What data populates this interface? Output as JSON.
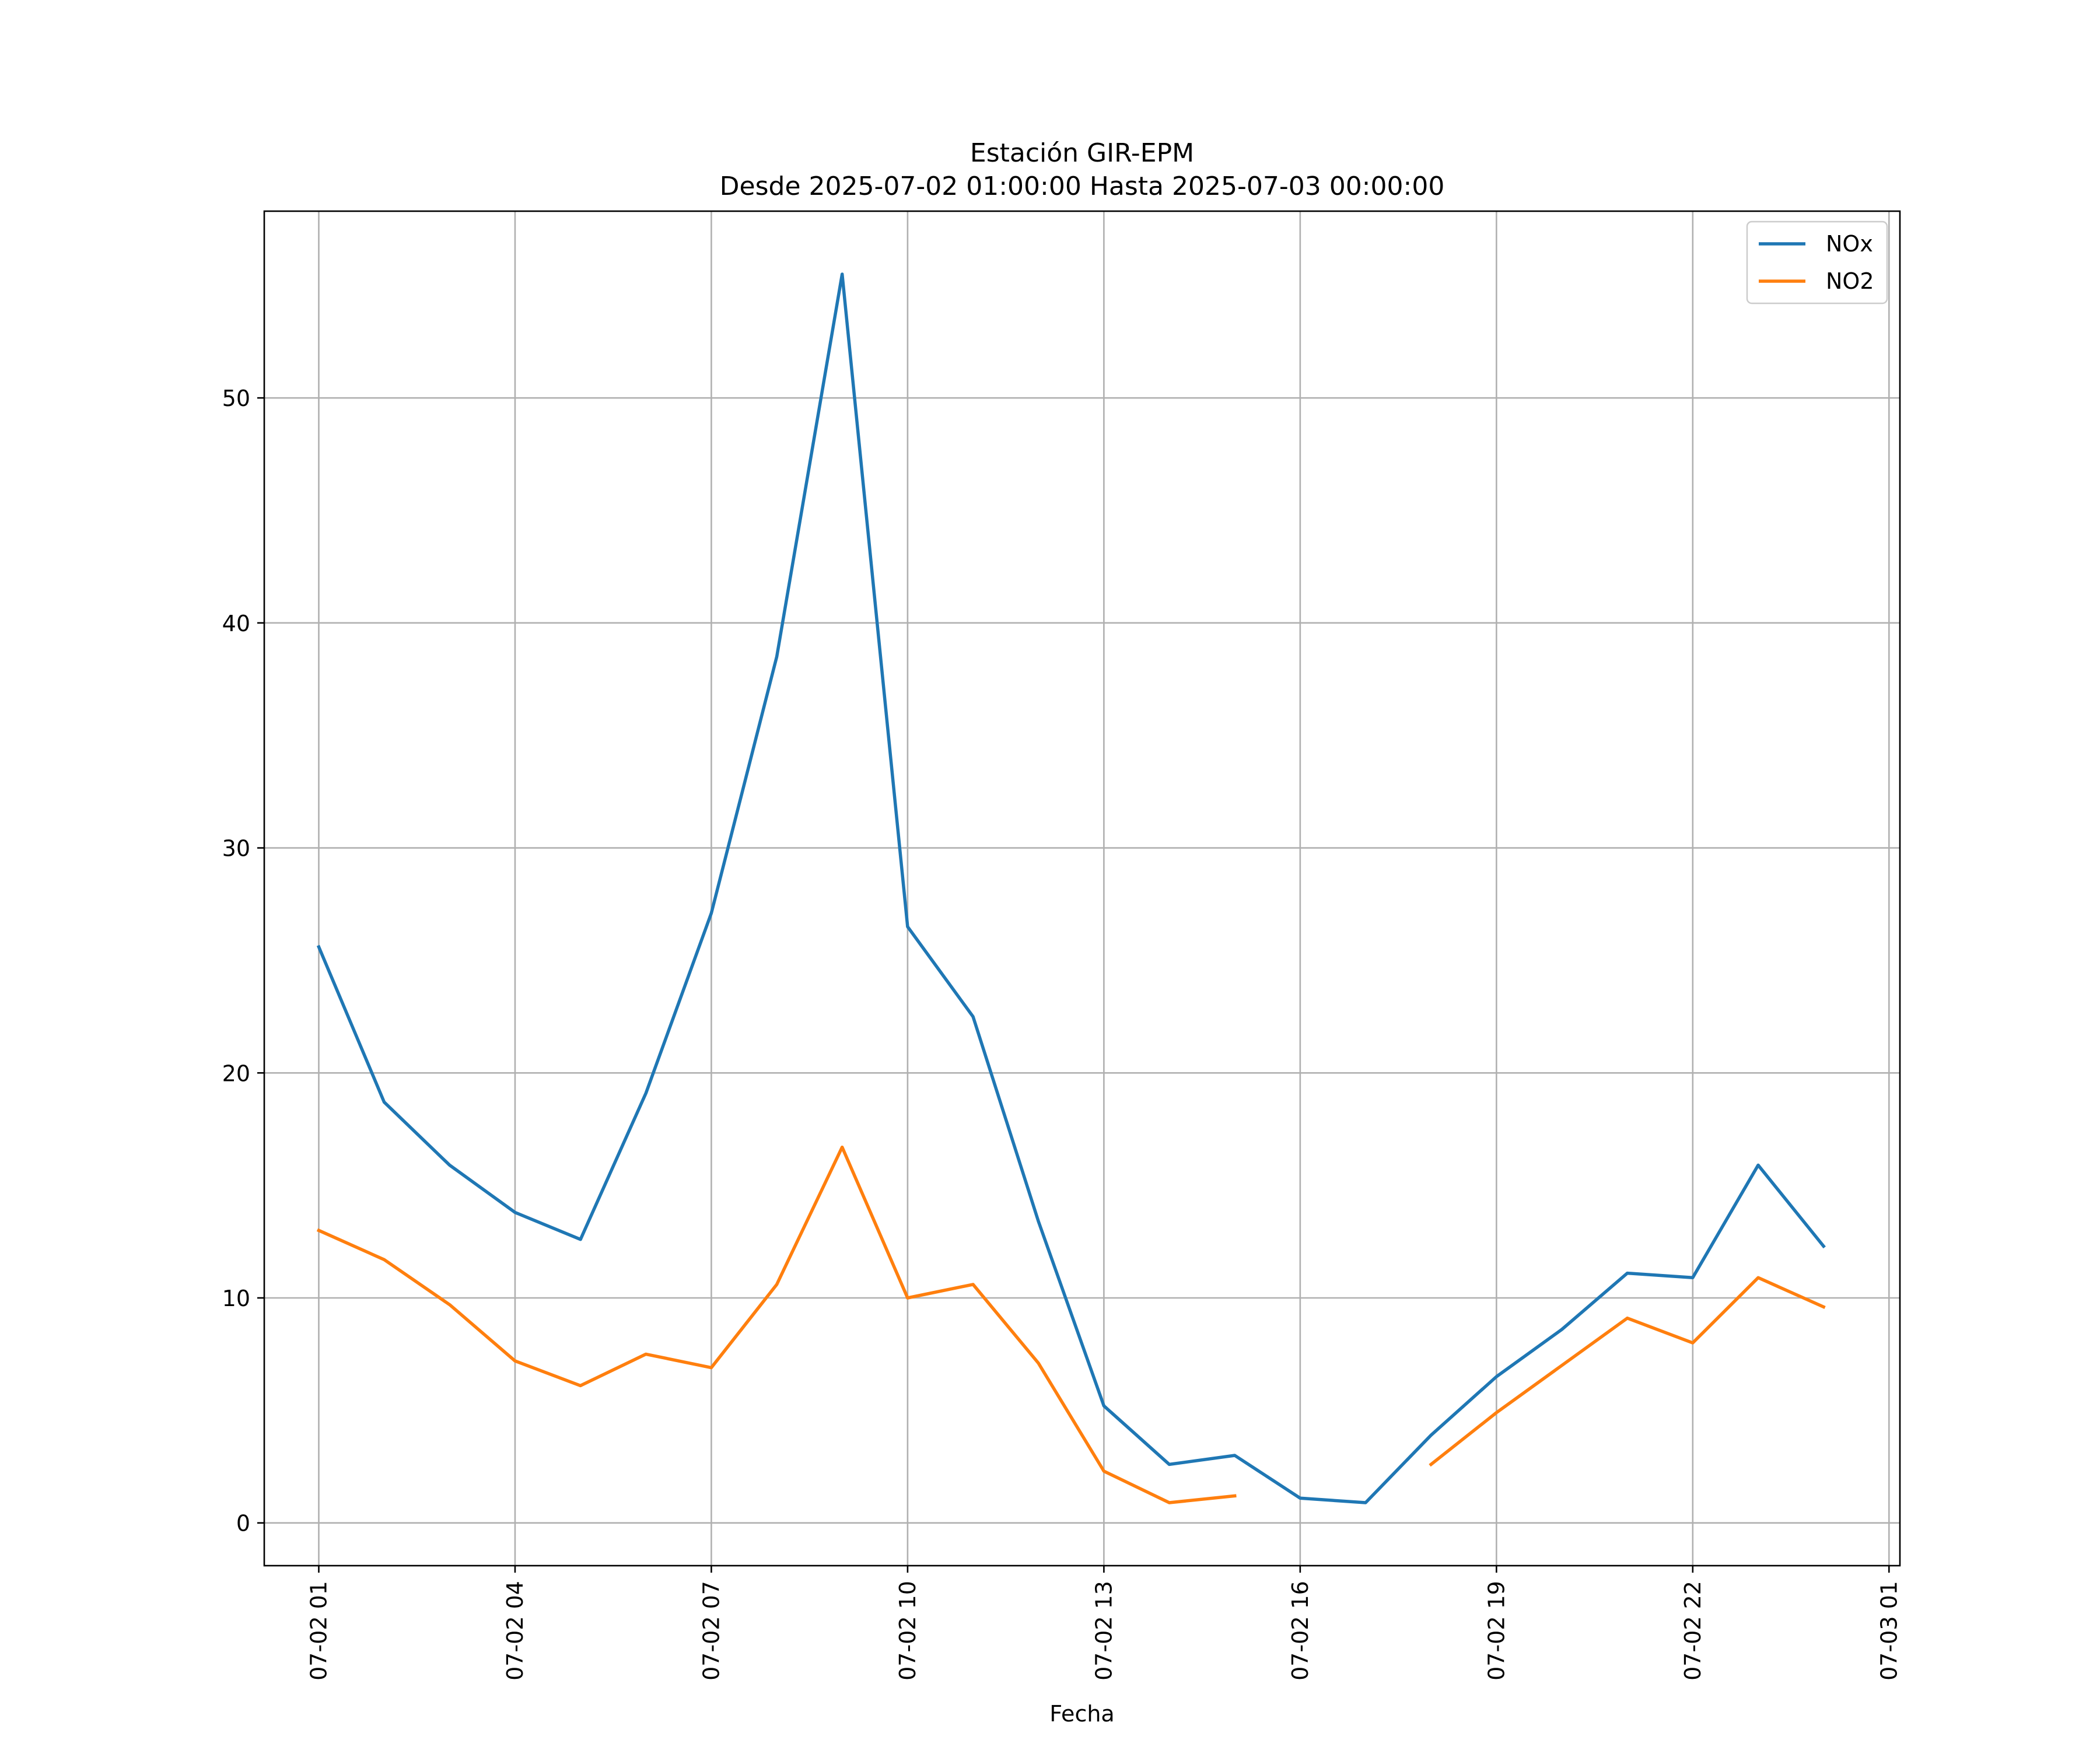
{
  "chart_data": {
    "type": "line",
    "title": "Estación GIR-EPM",
    "subtitle": "Desde 2025-07-02 01:00:00 Hasta 2025-07-03 00:00:00",
    "xlabel": "Fecha",
    "ylabel": "",
    "x": [
      "07-02 01",
      "07-02 02",
      "07-02 03",
      "07-02 04",
      "07-02 05",
      "07-02 06",
      "07-02 07",
      "07-02 08",
      "07-02 09",
      "07-02 10",
      "07-02 11",
      "07-02 12",
      "07-02 13",
      "07-02 14",
      "07-02 15",
      "07-02 16",
      "07-02 17",
      "07-02 18",
      "07-02 19",
      "07-02 20",
      "07-02 21",
      "07-02 22",
      "07-02 23",
      "07-03 00"
    ],
    "x_ticks": [
      "07-02 01",
      "07-02 04",
      "07-02 07",
      "07-02 10",
      "07-02 13",
      "07-02 16",
      "07-02 19",
      "07-02 22",
      "07-03 01"
    ],
    "xlim": [
      "07-02 00:10",
      "07-03 01:10"
    ],
    "y_ticks": [
      0,
      10,
      20,
      30,
      40,
      50
    ],
    "ylim": [
      -1.9,
      58.3
    ],
    "grid": true,
    "legend_position": "top-right",
    "series": [
      {
        "name": "NOx",
        "color": "#1f77b4",
        "values": [
          25.6,
          18.7,
          15.9,
          13.8,
          12.6,
          19.1,
          27.1,
          38.5,
          55.5,
          26.5,
          22.5,
          13.4,
          5.2,
          2.6,
          3.0,
          1.1,
          0.9,
          3.9,
          6.5,
          8.6,
          11.1,
          10.9,
          15.9,
          12.3
        ]
      },
      {
        "name": "NO2",
        "color": "#ff7f0e",
        "values": [
          13.0,
          11.7,
          9.7,
          7.2,
          6.1,
          7.5,
          6.9,
          10.6,
          16.7,
          10.0,
          10.6,
          7.1,
          2.3,
          0.9,
          1.2,
          null,
          null,
          2.6,
          4.9,
          7.0,
          9.1,
          8.0,
          10.9,
          9.6
        ]
      }
    ]
  }
}
